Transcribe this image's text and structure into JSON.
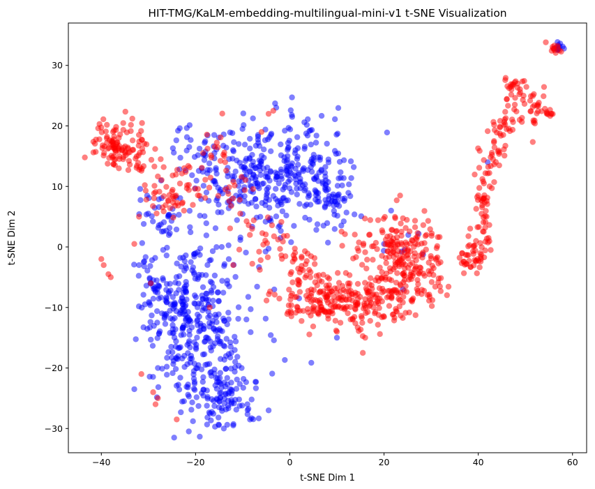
{
  "chart_data": {
    "type": "scatter",
    "title": "HIT-TMG/KaLM-embedding-multilingual-mini-v1 t-SNE Visualization",
    "xlabel": "t-SNE Dim 1",
    "ylabel": "t-SNE Dim 2",
    "xlim": [
      -47,
      63
    ],
    "ylim": [
      -34,
      37
    ],
    "xticks": [
      -40,
      -20,
      0,
      20,
      40,
      60
    ],
    "yticks": [
      -30,
      -20,
      -10,
      0,
      10,
      20,
      30
    ],
    "grid": false,
    "legend": "none",
    "marker_alpha": 0.5,
    "colors": {
      "blue": "#0000ff",
      "red": "#ff0000",
      "axis": "#000000"
    },
    "series": [
      {
        "color": "blue",
        "clusters": [
          {
            "cx": -20,
            "cy": -12,
            "sx": 6,
            "sy": 7,
            "n": 330
          },
          {
            "cx": -15,
            "cy": -25,
            "sx": 4,
            "sy": 3,
            "n": 110
          },
          {
            "cx": -26,
            "cy": -8,
            "sx": 5,
            "sy": 3,
            "n": 60
          },
          {
            "cx": -7,
            "cy": 11,
            "sx": 7,
            "sy": 4.5,
            "n": 260
          },
          {
            "cx": 5,
            "cy": 13,
            "sx": 5,
            "sy": 4,
            "n": 110
          },
          {
            "cx": 9,
            "cy": 8,
            "sx": 3,
            "sy": 2,
            "n": 40
          },
          {
            "cx": -27,
            "cy": 5,
            "sx": 2.5,
            "sy": 2,
            "n": 30
          },
          {
            "cx": -19,
            "cy": 15,
            "sx": 3,
            "sy": 2.5,
            "n": 30
          },
          {
            "cx": 57,
            "cy": 33,
            "sx": 0.5,
            "sy": 0.4,
            "n": 14
          },
          {
            "cx": 24,
            "cy": 0,
            "sx": 2,
            "sy": 1.5,
            "n": 6
          }
        ],
        "outliers": [
          [
            -33,
            -23.5
          ],
          [
            -32,
            -3
          ],
          [
            -31,
            -2.5
          ],
          [
            10,
            -15
          ],
          [
            21.5,
            6
          ],
          [
            0.5,
            21.5
          ],
          [
            -28,
            -20
          ],
          [
            -12,
            -29.5
          ],
          [
            -9,
            -26
          ],
          [
            -14,
            -30
          ],
          [
            20,
            0.5
          ],
          [
            42,
            14
          ],
          [
            -31,
            3.8
          ],
          [
            24,
            -7
          ]
        ]
      },
      {
        "color": "red",
        "clusters": [
          {
            "cx": -37,
            "cy": 17,
            "sx": 2.5,
            "sy": 2,
            "n": 90
          },
          {
            "cx": -32,
            "cy": 15,
            "sx": 2,
            "sy": 2,
            "n": 30
          },
          {
            "cx": -26,
            "cy": 9,
            "sx": 3,
            "sy": 2.5,
            "n": 40
          },
          {
            "cx": -16,
            "cy": 16,
            "sx": 2,
            "sy": 2,
            "n": 15
          },
          {
            "cx": -11,
            "cy": 8,
            "sx": 2.5,
            "sy": 3,
            "n": 20
          },
          {
            "cx": 8,
            "cy": -9,
            "sx": 5,
            "sy": 2.2,
            "n": 150
          },
          {
            "cx": 16,
            "cy": -9,
            "sx": 4,
            "sy": 2.2,
            "n": 90
          },
          {
            "cx": 25,
            "cy": -3,
            "sx": 3.5,
            "sy": 4,
            "n": 200
          },
          {
            "cx": 19,
            "cy": 1,
            "sx": 4,
            "sy": 2,
            "n": 50
          },
          {
            "cx": 3,
            "cy": -3,
            "sx": 2,
            "sy": 1.5,
            "n": 25
          },
          {
            "cx": -4,
            "cy": 0,
            "sx": 3,
            "sy": 2,
            "n": 25
          },
          {
            "cx": 39,
            "cy": -1.5,
            "sx": 1.5,
            "sy": 1.5,
            "n": 40
          },
          {
            "cx": 41,
            "cy": 6,
            "sx": 1,
            "sy": 4,
            "n": 50
          },
          {
            "cx": 43,
            "cy": 15,
            "sx": 1.5,
            "sy": 2,
            "n": 25
          },
          {
            "cx": 46,
            "cy": 20,
            "sx": 1.5,
            "sy": 1.5,
            "n": 25
          },
          {
            "cx": 48,
            "cy": 26,
            "sx": 1.5,
            "sy": 1.5,
            "n": 30
          },
          {
            "cx": 52,
            "cy": 22,
            "sx": 1.5,
            "sy": 2,
            "n": 25
          },
          {
            "cx": 55,
            "cy": 22,
            "sx": 0.5,
            "sy": 0.5,
            "n": 8
          },
          {
            "cx": 56.5,
            "cy": 33,
            "sx": 0.6,
            "sy": 0.4,
            "n": 12
          },
          {
            "cx": -21,
            "cy": 11,
            "sx": 3,
            "sy": 2,
            "n": 20
          }
        ],
        "outliers": [
          [
            -29,
            -24
          ],
          [
            -28.5,
            -26
          ],
          [
            -28,
            -25
          ],
          [
            -24,
            -28.5
          ],
          [
            -31.5,
            -21
          ],
          [
            -39.5,
            -3
          ],
          [
            -40,
            -2
          ],
          [
            -38.5,
            -4.5
          ],
          [
            -38,
            -5
          ],
          [
            -4.5,
            22
          ],
          [
            -3.5,
            22.5
          ],
          [
            -6,
            19
          ],
          [
            16,
            -15
          ],
          [
            15.5,
            -17.5
          ],
          [
            10,
            -14
          ],
          [
            30,
            -4
          ],
          [
            29,
            2
          ],
          [
            -17,
            -10
          ],
          [
            -33,
            0.5
          ],
          [
            -32,
            5
          ],
          [
            8,
            -5
          ],
          [
            -12,
            -3
          ],
          [
            -8,
            3
          ],
          [
            -29.5,
            -6
          ]
        ]
      }
    ]
  }
}
